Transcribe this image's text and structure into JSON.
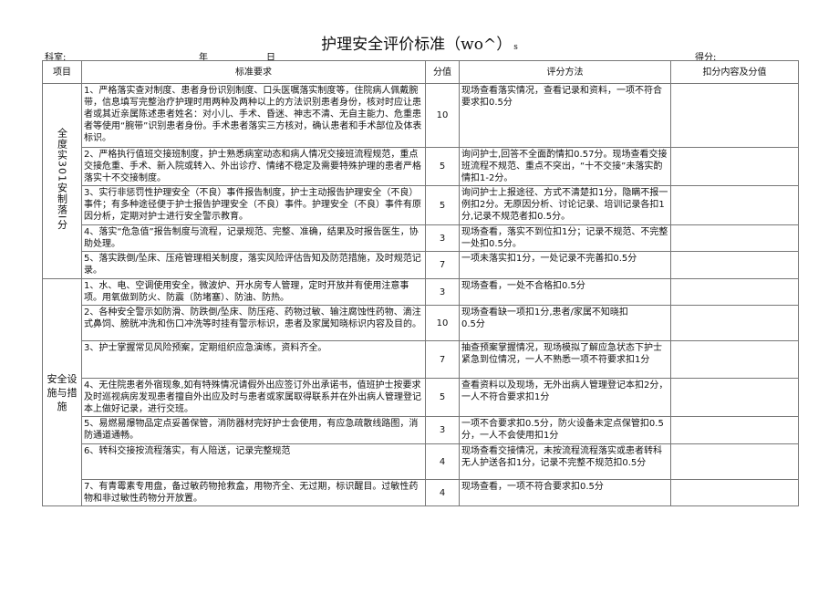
{
  "title": "护理安全评价标准（wo^）",
  "title_suffix": "s",
  "meta": {
    "department": "科室:",
    "year": "年",
    "day": "日",
    "score": "得分:"
  },
  "headers": [
    "项目",
    "标准要求",
    "分值",
    "评分方法",
    "扣分内容及分值"
  ],
  "sections": [
    {
      "item": "全度实301安制落I分",
      "rows": [
        {
          "standard": "1、严格落实查对制度、患者身份识别制度、口头医嘱落实制度等，住院病人佩戴腕带，信息填写完整治疗护理时用两种及两种以上的方法识别患者身份，核对时应让患者或其近亲属陈述患者姓名：对小儿、手术、昏迷、神志不清、无自主能力、危重患者等使用“腕带”识别患者身份。手术患者落实三方核对，确认患者和手术部位及体表标识。",
          "score": "10",
          "method": "现场查看落实情况，查看记录和资料，一项不符合要求扣0.5分"
        },
        {
          "standard": "2、严格执行值班交接班制度，护士熟悉病室动态和病人情况交接班流程规范，重点交接危重、手术、新入院或转入、外出诊疗、情绪不稳定及需要特殊护理的患者严格落实十不交接制度。",
          "score": "5",
          "method": "询问护士,回答不全面酌情扣0.57分。现场查看交接班流程不规范、重点不突出，“十不交接”未落实酌情扣1-2分。"
        },
        {
          "standard": "3、实行非惩罚性护理安全（不良）事件报告制度，护士主动报告护理安全（不良）事件；有多种途径便于护士报告护理安全（不良）事件。护理安全（不良）事件有原因分析，定期对护士进行安全警示教育。",
          "score": "5",
          "method": "询问护士上报途径、方式不清楚扣1分，隐瞒不报一例扣2分。无原因分析、讨论记录、培训记录各扣1分,记录不规范者扣0.5分。"
        },
        {
          "standard": "4、落实“危急值”报告制度与流程，记录规范、完整、准确，结果及时报告医生，协助处理。",
          "score": "3",
          "method": "现场查看，落实不到位扣1分；记录不规范、不完整一处扣0.5分。"
        },
        {
          "standard": "5、落实跌倒/坠床、压疮管理相关制度，落实风险评估告知及防范措施，及时规范记录。",
          "score": "7",
          "method": "一项未落实扣1分，一处记录不完善扣0.5分"
        }
      ]
    },
    {
      "item": "安全设施与措施",
      "rows": [
        {
          "standard": "1、水、电、空调使用安全，微波炉、开水房专人管理，定时开放并有使用注意事项。用氧做到防火、防震（防堵塞）、防油、防热。",
          "score": "3",
          "method": "现场查看，一处不合格扣0.5分"
        },
        {
          "standard": "2、各种安全警示如防滑、防跌倒/坠床、防压疮、药物过敏、输注腐蚀性药物、滴注式鼻饲、膀胱冲洗和伤口冲洗等时挂有警示标识，患者及家属知晓标识内容及目的。",
          "score": "10",
          "method": "现场查看缺一项扣1分,患者/家属不知晓扣\n0.5分"
        },
        {
          "standard": "3、护士掌握常见风险预案，定期组织应急演练，资料齐全。",
          "score": "7",
          "method": "抽查预案掌握情况，现场模拟了解应急状态下护士紧急到位情况，一人不熟悉一项不符要求扣1分"
        },
        {
          "standard": "4、无住院患者外宿现象,如有特殊情况请假外出应签订外出承诺书，值班护士按要求及时巡视病房发现患者擅自外出应及时与患者或家属取得联系并在外出病人管理登记本上做好记录，进行交班。",
          "score": "5",
          "method": "查看资料以及现场，无外出病人管理登记本扣2分，一人不符合要求扣1分"
        },
        {
          "standard": "5、易燃易爆物品定点妥善保管，消防器材完好护士会使用，有应急疏散线路图，消防通道通畅。",
          "score": "3",
          "method": "一项不合要求扣0.5分，防火设备未定点保管扣0.5分，一人不会使用扣1分"
        },
        {
          "standard": "6、转科交接按流程落实，有人陪送，记录完整规范",
          "score": "4",
          "method": "现场查看交接情况，未按流程流程落实或患者转科无人护送各扣1分，记录不完整不规范扣0.5分"
        },
        {
          "standard": "7、有青霉素专用盘，备过敏药物抢救盒，用物齐全、无过期，标识醒目。过敏性药物和非过敏性药物分开放置。",
          "score": "4",
          "method": "现场查看，一项不符合要求扣0.5分"
        }
      ]
    }
  ]
}
